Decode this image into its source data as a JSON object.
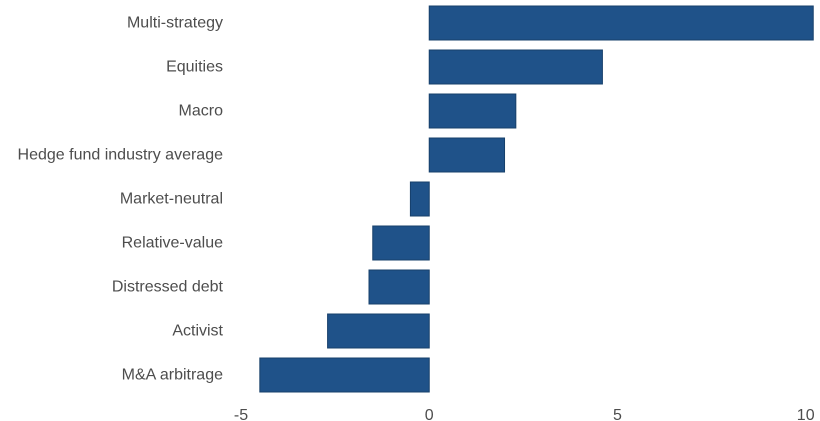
{
  "chart_data": {
    "type": "bar",
    "orientation": "horizontal",
    "categories": [
      "Multi-strategy",
      "Equities",
      "Macro",
      "Hedge fund industry average",
      "Market-neutral",
      "Relative-value",
      "Distressed debt",
      "Activist",
      "M&A arbitrage"
    ],
    "values": [
      10.2,
      4.6,
      2.3,
      2.0,
      -0.5,
      -1.5,
      -1.6,
      -2.7,
      -4.5
    ],
    "xlim": [
      -5,
      10.3
    ],
    "xticks": [
      -5,
      0,
      5,
      10
    ],
    "xtick_labels": [
      "-5",
      "0",
      "5",
      "10"
    ],
    "grid": false,
    "legend": "none",
    "title": "",
    "xlabel": "",
    "ylabel": "",
    "colors": {
      "bar": "#1f5289",
      "bar_edge": "#17406b",
      "text": "#4d4d4d"
    }
  }
}
